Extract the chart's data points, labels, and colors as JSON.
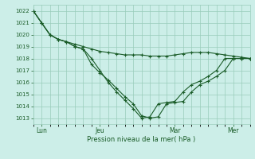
{
  "bg_color": "#cceee8",
  "grid_color": "#99ccbb",
  "line_color": "#1a5c28",
  "xlabel": "Pression niveau de la mer( hPa )",
  "xlabel_color": "#1a5c28",
  "tick_color": "#1a5c28",
  "ylim": [
    1012.5,
    1022.5
  ],
  "yticks": [
    1013,
    1014,
    1015,
    1016,
    1017,
    1018,
    1019,
    1020,
    1021,
    1022
  ],
  "xtick_labels": [
    "Lun",
    "Jeu",
    "Mar",
    "Mer"
  ],
  "xtick_positions": [
    1,
    8,
    17,
    24
  ],
  "n_points": 27,
  "series": [
    [
      1022,
      1021,
      1020,
      1019.6,
      1019.4,
      1019.2,
      1019.0,
      1018.8,
      1018.6,
      1018.5,
      1018.4,
      1018.3,
      1018.3,
      1018.3,
      1018.2,
      1018.2,
      1018.2,
      1018.3,
      1018.4,
      1018.5,
      1018.5,
      1018.5,
      1018.4,
      1018.3,
      1018.2,
      1018.1,
      1018.0
    ],
    [
      1022,
      1021,
      1020,
      1019.6,
      1019.4,
      1019.0,
      1018.8,
      1017.5,
      1016.8,
      1016.2,
      1015.5,
      1014.8,
      1014.2,
      1013.2,
      1013.0,
      1013.1,
      1014.2,
      1014.3,
      1014.4,
      1015.2,
      1015.8,
      1016.1,
      1016.5,
      1017.0,
      1018.0,
      1018.0,
      1018.0
    ],
    [
      1022,
      1021,
      1020,
      1019.6,
      1019.4,
      1019.0,
      1018.8,
      1018.0,
      1017.0,
      1016.0,
      1015.2,
      1014.5,
      1013.8,
      1013.0,
      1013.1,
      1014.2,
      1014.3,
      1014.4,
      1015.2,
      1015.8,
      1016.1,
      1016.5,
      1017.0,
      1018.0,
      1018.0,
      1018.0,
      1018.0
    ]
  ]
}
